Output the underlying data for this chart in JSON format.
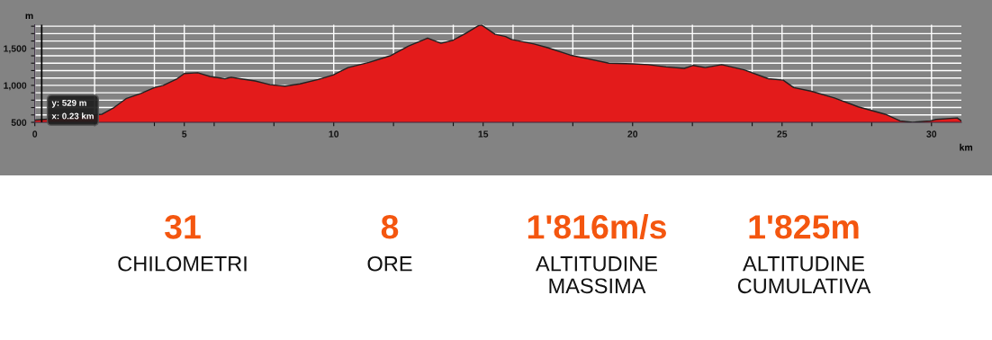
{
  "chart_data": [
    {
      "type": "area",
      "xlabel": "km",
      "ylabel": "m",
      "x": [
        0,
        0.34,
        2.25,
        2.65,
        3.05,
        3.55,
        4.0,
        4.3,
        4.76,
        5.0,
        5.45,
        5.86,
        6.36,
        6.57,
        6.87,
        7.37,
        7.87,
        8.37,
        8.87,
        9.48,
        9.98,
        10.28,
        10.48,
        11.18,
        11.89,
        12.49,
        13.14,
        13.59,
        13.99,
        14.4,
        14.85,
        14.95,
        15.4,
        15.75,
        15.95,
        16.7,
        17.16,
        17.91,
        18.51,
        19.21,
        20.02,
        20.52,
        21.12,
        21.73,
        22.03,
        22.43,
        22.98,
        23.73,
        24.54,
        25.04,
        25.39,
        25.99,
        26.75,
        27.55,
        28.45,
        28.95,
        29.36,
        29.96,
        30.16,
        30.86,
        31.0
      ],
      "series": [
        {
          "color": "#e31b1b",
          "values": [
            530,
            540,
            610,
            700,
            820,
            890,
            970,
            1000,
            1090,
            1160,
            1170,
            1120,
            1090,
            1110,
            1090,
            1060,
            1010,
            990,
            1020,
            1080,
            1140,
            1200,
            1240,
            1310,
            1400,
            1530,
            1640,
            1570,
            1610,
            1700,
            1810,
            1816,
            1690,
            1660,
            1620,
            1560,
            1510,
            1410,
            1360,
            1300,
            1290,
            1280,
            1250,
            1230,
            1270,
            1240,
            1280,
            1210,
            1090,
            1070,
            970,
            920,
            830,
            710,
            610,
            520,
            500,
            520,
            540,
            560,
            520
          ]
        }
      ],
      "xlim": [
        0,
        31
      ],
      "xticks": [
        0,
        {
          "value": 2,
          "label": null
        },
        {
          "value": 4,
          "label": null
        },
        5,
        {
          "value": 6,
          "label": null
        },
        {
          "value": 8,
          "label": null
        },
        10,
        {
          "value": 12,
          "label": null
        },
        {
          "value": 14,
          "label": null
        },
        15,
        {
          "value": 16,
          "label": null
        },
        {
          "value": 18,
          "label": null
        },
        20,
        {
          "value": 22,
          "label": null
        },
        {
          "value": 24,
          "label": null
        },
        25,
        {
          "value": 26,
          "label": null
        },
        {
          "value": 28,
          "label": null
        },
        30
      ],
      "ylim": [
        500,
        1820
      ],
      "yticks": [
        500,
        {
          "value": 600,
          "label": null
        },
        {
          "value": 700,
          "label": null
        },
        {
          "value": 800,
          "label": null
        },
        {
          "value": 900,
          "label": null
        },
        {
          "value": 1000,
          "label": "1,000"
        },
        {
          "value": 1100,
          "label": null
        },
        {
          "value": 1200,
          "label": null
        },
        {
          "value": 1300,
          "label": null
        },
        {
          "value": 1400,
          "label": null
        },
        {
          "value": 1500,
          "label": "1,500"
        },
        {
          "value": 1600,
          "label": null
        },
        {
          "value": 1700,
          "label": null
        },
        {
          "value": 1800,
          "label": null
        }
      ],
      "grid": true,
      "ref_lines": [
        {
          "axis": "x",
          "value": 0.23,
          "label": null,
          "color": "#000000"
        }
      ],
      "annotations": [
        {
          "text": "y: 529 m\nx: 0.23 km",
          "x": 0.23,
          "y": 529
        }
      ]
    },
    {
      "type": "other",
      "categories": [
        "CHILOMETRI",
        "ORE",
        "ALTITUDINE\nMASSIMA",
        "ALTITUDINE\nCUMULATIVA"
      ],
      "annotations": [
        "31",
        "8",
        "1'816m/s",
        "1'825m"
      ],
      "color": "#f4560f"
    }
  ]
}
